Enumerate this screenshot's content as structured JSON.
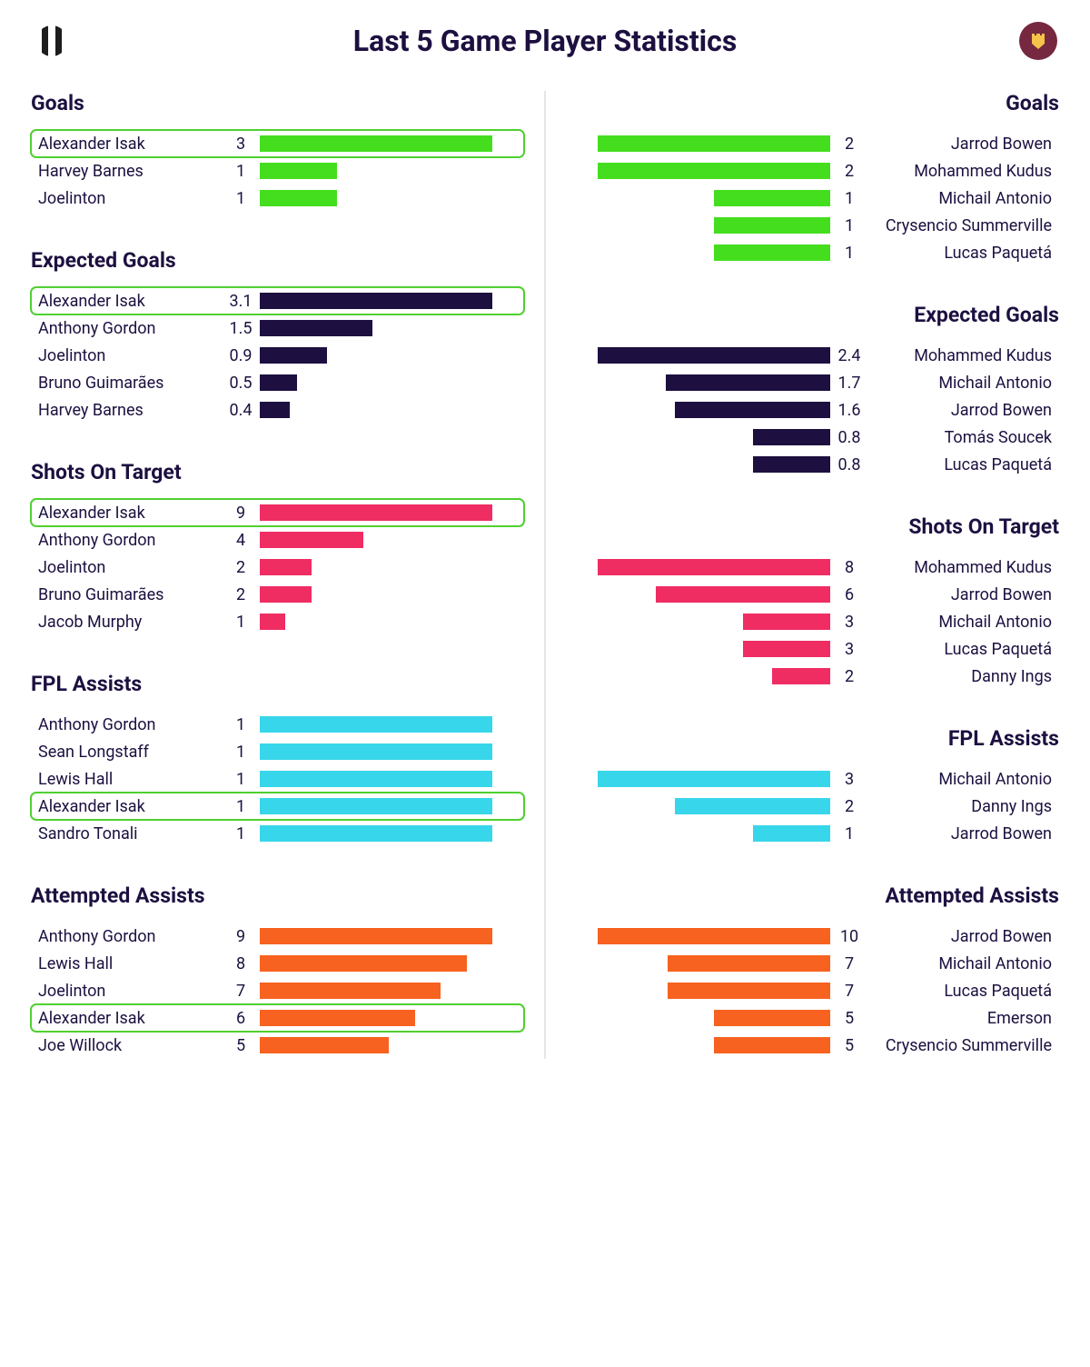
{
  "title": "Last 5 Game Player Statistics",
  "colors": {
    "text": "#1d1040",
    "highlight_border": "#50d030",
    "divider": "#e5e5e5",
    "badge_right_bg": "#762840"
  },
  "highlight_player": "Alexander Isak",
  "left_badge": {
    "stripes": [
      "#1d1d1d",
      "#ffffff",
      "#1d1d1d"
    ]
  },
  "right_badge": {
    "bg": "#762840",
    "fg": "#f5c24a"
  },
  "sections": [
    {
      "title": "Goals",
      "bar_color": "#45de1f",
      "max": 3,
      "left": [
        {
          "name": "Alexander Isak",
          "value": 3
        },
        {
          "name": "Harvey Barnes",
          "value": 1
        },
        {
          "name": "Joelinton",
          "value": 1
        }
      ],
      "right": [
        {
          "name": "Jarrod Bowen",
          "value": 2
        },
        {
          "name": "Mohammed Kudus",
          "value": 2
        },
        {
          "name": "Michail Antonio",
          "value": 1
        },
        {
          "name": "Crysencio Summerville",
          "value": 1
        },
        {
          "name": "Lucas Paquetá",
          "value": 1
        }
      ]
    },
    {
      "title": "Expected Goals",
      "bar_color": "#1d1040",
      "max": 3.1,
      "left": [
        {
          "name": "Alexander Isak",
          "value": 3.1
        },
        {
          "name": "Anthony Gordon",
          "value": 1.5
        },
        {
          "name": "Joelinton",
          "value": 0.9
        },
        {
          "name": "Bruno Guimarães",
          "value": 0.5
        },
        {
          "name": "Harvey Barnes",
          "value": 0.4
        }
      ],
      "right": [
        {
          "name": "Mohammed Kudus",
          "value": 2.4
        },
        {
          "name": "Michail Antonio",
          "value": 1.7
        },
        {
          "name": "Jarrod Bowen",
          "value": 1.6
        },
        {
          "name": "Tomás Soucek",
          "value": 0.8
        },
        {
          "name": "Lucas Paquetá",
          "value": 0.8
        }
      ]
    },
    {
      "title": "Shots On Target",
      "bar_color": "#ef2d63",
      "max": 9,
      "left": [
        {
          "name": "Alexander Isak",
          "value": 9
        },
        {
          "name": "Anthony Gordon",
          "value": 4
        },
        {
          "name": "Joelinton",
          "value": 2
        },
        {
          "name": "Bruno Guimarães",
          "value": 2
        },
        {
          "name": "Jacob Murphy",
          "value": 1
        }
      ],
      "right": [
        {
          "name": "Mohammed Kudus",
          "value": 8
        },
        {
          "name": "Jarrod Bowen",
          "value": 6
        },
        {
          "name": "Michail Antonio",
          "value": 3
        },
        {
          "name": "Lucas Paquetá",
          "value": 3
        },
        {
          "name": "Danny Ings",
          "value": 2
        }
      ]
    },
    {
      "title": "FPL Assists",
      "bar_color": "#38d6ea",
      "max": 3,
      "left_equal_bars": true,
      "left": [
        {
          "name": "Anthony Gordon",
          "value": 1
        },
        {
          "name": "Sean Longstaff",
          "value": 1
        },
        {
          "name": "Lewis Hall",
          "value": 1
        },
        {
          "name": "Alexander Isak",
          "value": 1
        },
        {
          "name": "Sandro Tonali",
          "value": 1
        }
      ],
      "right": [
        {
          "name": "Michail Antonio",
          "value": 3
        },
        {
          "name": "Danny Ings",
          "value": 2
        },
        {
          "name": "Jarrod Bowen",
          "value": 1
        }
      ]
    },
    {
      "title": "Attempted Assists",
      "bar_color": "#f76220",
      "max": 10,
      "left": [
        {
          "name": "Anthony Gordon",
          "value": 9
        },
        {
          "name": "Lewis Hall",
          "value": 8
        },
        {
          "name": "Joelinton",
          "value": 7
        },
        {
          "name": "Alexander Isak",
          "value": 6
        },
        {
          "name": "Joe Willock",
          "value": 5
        }
      ],
      "right": [
        {
          "name": "Jarrod Bowen",
          "value": 10
        },
        {
          "name": "Michail Antonio",
          "value": 7
        },
        {
          "name": "Lucas Paquetá",
          "value": 7
        },
        {
          "name": "Emerson",
          "value": 5
        },
        {
          "name": "Crysencio Summerville",
          "value": 5
        }
      ]
    }
  ]
}
